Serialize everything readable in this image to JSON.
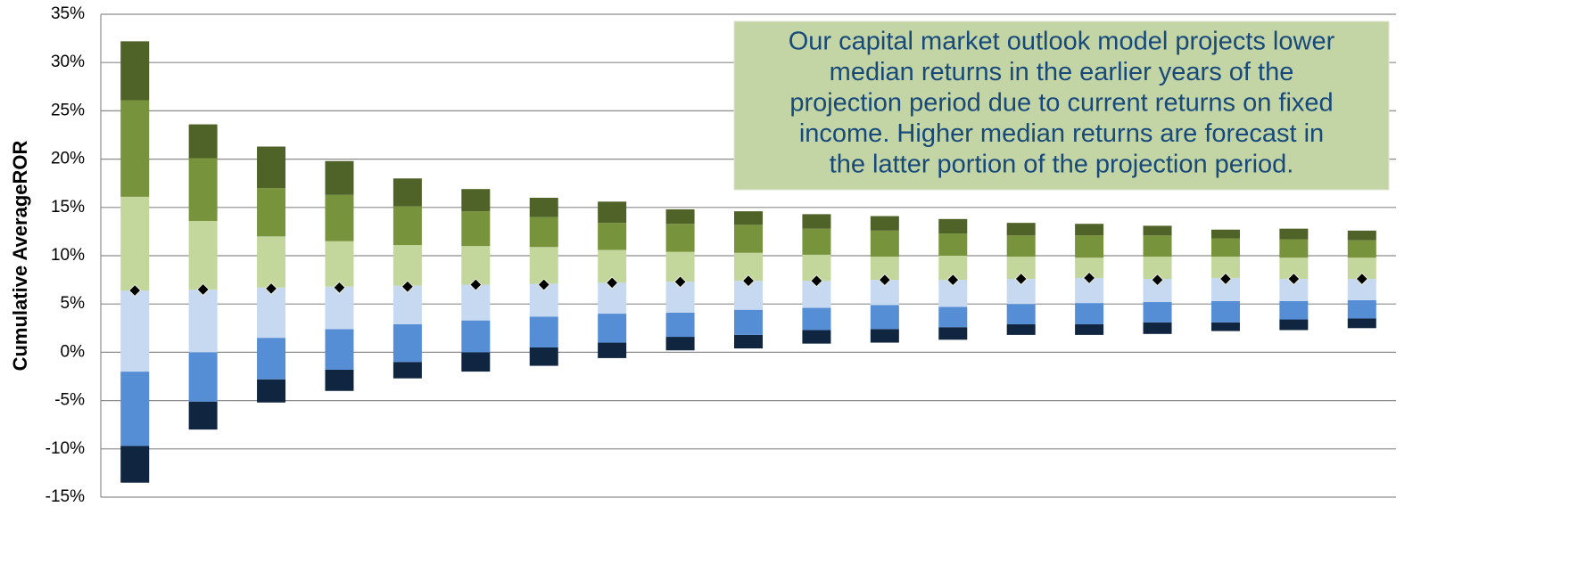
{
  "chart_data": {
    "type": "floating-stacked-bar",
    "ylabel": "Cumulative AverageROR",
    "annotation": [
      "Our capital market outlook model projects lower",
      "median returns in the earlier years of the",
      "projection period due to current returns on fixed",
      "income. Higher median  returns are forecast in",
      "the latter portion of the projection period."
    ],
    "ylim": [
      -15,
      35
    ],
    "yticks": [
      {
        "value": -15,
        "label": "-15%"
      },
      {
        "value": -10,
        "label": "-10%"
      },
      {
        "value": -5,
        "label": "-5%"
      },
      {
        "value": 0,
        "label": "0%"
      },
      {
        "value": 5,
        "label": "5%"
      },
      {
        "value": 10,
        "label": "10%"
      },
      {
        "value": 15,
        "label": "15%"
      },
      {
        "value": 20,
        "label": "20%"
      },
      {
        "value": 25,
        "label": "25%"
      },
      {
        "value": 30,
        "label": "30%"
      },
      {
        "value": 35,
        "label": "35%"
      }
    ],
    "grid": true,
    "colors": [
      "#10253f",
      "#558ed5",
      "#c6d9f1",
      "#c3d69b",
      "#77933c",
      "#4f6228"
    ],
    "median_color": "#000000",
    "levels": [
      [
        -13.5,
        -8.0,
        -5.2,
        -4.0,
        -2.7,
        -2.0,
        -1.4,
        -0.6,
        0.2,
        0.4,
        0.9,
        1.0,
        1.3,
        1.8,
        1.8,
        1.9,
        2.2,
        2.3,
        2.5
      ],
      [
        -9.7,
        -5.1,
        -2.8,
        -1.8,
        -1.0,
        0.0,
        0.5,
        1.0,
        1.6,
        1.8,
        2.3,
        2.4,
        2.6,
        2.9,
        2.9,
        3.1,
        3.1,
        3.4,
        3.5
      ],
      [
        -2.0,
        0.0,
        1.5,
        2.4,
        2.9,
        3.3,
        3.7,
        4.0,
        4.1,
        4.4,
        4.6,
        4.9,
        4.7,
        5.0,
        5.1,
        5.2,
        5.3,
        5.3,
        5.4
      ],
      [
        6.4,
        6.5,
        6.7,
        6.8,
        6.9,
        7.0,
        7.1,
        7.2,
        7.3,
        7.4,
        7.4,
        7.5,
        7.5,
        7.6,
        7.7,
        7.6,
        7.7,
        7.6,
        7.6
      ],
      [
        16.1,
        13.6,
        12.0,
        11.5,
        11.1,
        11.0,
        10.9,
        10.6,
        10.4,
        10.3,
        10.1,
        9.9,
        10.0,
        9.9,
        9.8,
        9.9,
        9.9,
        9.8,
        9.8
      ],
      [
        26.1,
        20.1,
        17.0,
        16.3,
        15.1,
        14.6,
        14.0,
        13.4,
        13.3,
        13.2,
        12.8,
        12.6,
        12.3,
        12.1,
        12.1,
        12.1,
        11.8,
        11.7,
        11.6
      ],
      [
        32.2,
        23.6,
        21.3,
        19.8,
        18.0,
        16.9,
        16.0,
        15.6,
        14.8,
        14.6,
        14.3,
        14.1,
        13.8,
        13.4,
        13.3,
        13.1,
        12.7,
        12.8,
        12.6
      ]
    ],
    "median": [
      6.4,
      6.5,
      6.6,
      6.7,
      6.8,
      7.0,
      7.0,
      7.2,
      7.3,
      7.4,
      7.4,
      7.5,
      7.5,
      7.6,
      7.7,
      7.5,
      7.6,
      7.6,
      7.6
    ]
  }
}
